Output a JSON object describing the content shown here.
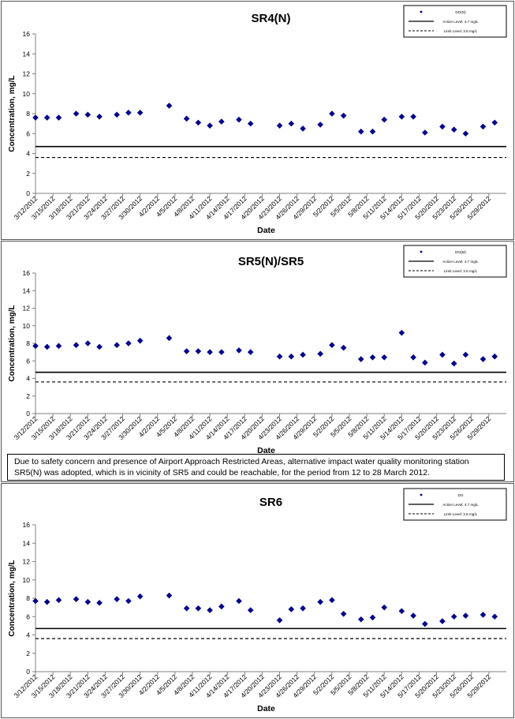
{
  "chart_data": [
    {
      "type": "scatter",
      "title": "SR4(N)",
      "xlabel": "Date",
      "ylabel": "Concentration, mg/L",
      "ylim": [
        0,
        16
      ],
      "y_ticks": [
        "0",
        "2",
        "4",
        "6",
        "8",
        "10",
        "12",
        "14",
        "16"
      ],
      "x_ticks": [
        "3/12/2012",
        "3/15/2012",
        "3/18/2012",
        "3/21/2012",
        "3/24/2012",
        "3/27/2012",
        "3/30/2012",
        "4/2/2012",
        "4/5/2012",
        "4/8/2012",
        "4/11/2012",
        "4/14/2012",
        "4/17/2012",
        "4/20/2012",
        "4/23/2012",
        "4/26/2012",
        "4/29/2012",
        "5/2/2012",
        "5/5/2012",
        "5/8/2012",
        "5/11/2012",
        "5/14/2012",
        "5/17/2012",
        "5/20/2012",
        "5/23/2012",
        "5/26/2012",
        "5/29/2012"
      ],
      "x_range": [
        "2012-03-12",
        "2012-06-01"
      ],
      "grid": false,
      "legend_position": "top-right",
      "series": [
        {
          "name": "DO(N)",
          "kind": "marker",
          "color": "#00008B",
          "x": [
            "2012-03-12",
            "2012-03-14",
            "2012-03-16",
            "2012-03-19",
            "2012-03-21",
            "2012-03-23",
            "2012-03-26",
            "2012-03-28",
            "2012-03-30",
            "2012-04-04",
            "2012-04-07",
            "2012-04-09",
            "2012-04-11",
            "2012-04-13",
            "2012-04-16",
            "2012-04-18",
            "2012-04-23",
            "2012-04-25",
            "2012-04-27",
            "2012-04-30",
            "2012-05-02",
            "2012-05-04",
            "2012-05-07",
            "2012-05-09",
            "2012-05-11",
            "2012-05-14",
            "2012-05-16",
            "2012-05-18",
            "2012-05-21",
            "2012-05-23",
            "2012-05-25",
            "2012-05-28",
            "2012-05-30"
          ],
          "y": [
            7.6,
            7.6,
            7.6,
            8.0,
            7.9,
            7.7,
            7.9,
            8.1,
            8.1,
            8.8,
            7.5,
            7.1,
            6.8,
            7.2,
            7.4,
            7.0,
            6.8,
            7.0,
            6.5,
            6.9,
            8.0,
            7.8,
            6.2,
            6.2,
            7.4,
            7.7,
            7.7,
            6.1,
            6.7,
            6.4,
            6.0,
            6.7,
            7.1
          ]
        },
        {
          "name": "Action Level: 4.7 mg/L",
          "kind": "line",
          "style": "solid",
          "value": 4.7
        },
        {
          "name": "Limit Level: 3.6 mg/L",
          "kind": "line",
          "style": "dashed",
          "value": 3.6
        }
      ]
    },
    {
      "type": "scatter",
      "title": "SR5(N)/SR5",
      "xlabel": "Date",
      "ylabel": "Concentration, mg/L",
      "ylim": [
        0,
        16
      ],
      "y_ticks": [
        "0",
        "2",
        "4",
        "6",
        "8",
        "10",
        "12",
        "14",
        "16"
      ],
      "x_ticks": [
        "3/12/2012",
        "3/15/2012",
        "3/18/2012",
        "3/21/2012",
        "3/24/2012",
        "3/27/2012",
        "3/30/2012",
        "4/2/2012",
        "4/5/2012",
        "4/8/2012",
        "4/11/2012",
        "4/14/2012",
        "4/17/2012",
        "4/20/2012",
        "4/23/2012",
        "4/26/2012",
        "4/29/2012",
        "5/2/2012",
        "5/5/2012",
        "5/8/2012",
        "5/11/2012",
        "5/14/2012",
        "5/17/2012",
        "5/20/2012",
        "5/23/2012",
        "5/26/2012",
        "5/29/2012"
      ],
      "x_range": [
        "2012-03-12",
        "2012-06-01"
      ],
      "grid": false,
      "legend_position": "top-right",
      "note": "Due to safety concern and presence of Airport Approach Restricted Areas, alternative impact water quality monitoring station SR5(N) was adopted, which is in vicinity of SR5 and could be reachable, for the period from 12 to 28 March 2012.",
      "series": [
        {
          "name": "DO(M)",
          "kind": "marker",
          "color": "#00008B",
          "x": [
            "2012-03-12",
            "2012-03-14",
            "2012-03-16",
            "2012-03-19",
            "2012-03-21",
            "2012-03-23",
            "2012-03-26",
            "2012-03-28",
            "2012-03-30",
            "2012-04-04",
            "2012-04-07",
            "2012-04-09",
            "2012-04-11",
            "2012-04-13",
            "2012-04-16",
            "2012-04-18",
            "2012-04-23",
            "2012-04-25",
            "2012-04-27",
            "2012-04-30",
            "2012-05-02",
            "2012-05-04",
            "2012-05-07",
            "2012-05-09",
            "2012-05-11",
            "2012-05-14",
            "2012-05-16",
            "2012-05-18",
            "2012-05-21",
            "2012-05-23",
            "2012-05-25",
            "2012-05-28",
            "2012-05-30"
          ],
          "y": [
            7.7,
            7.6,
            7.7,
            7.8,
            8.0,
            7.6,
            7.8,
            8.0,
            8.3,
            8.6,
            7.1,
            7.1,
            7.0,
            7.0,
            7.2,
            7.0,
            6.5,
            6.5,
            6.7,
            6.8,
            7.8,
            7.5,
            6.2,
            6.4,
            6.4,
            9.2,
            6.4,
            5.8,
            6.7,
            5.7,
            6.7,
            6.2,
            6.5
          ]
        },
        {
          "name": "Action Level: 4.7 mg/L",
          "kind": "line",
          "style": "solid",
          "value": 4.7
        },
        {
          "name": "Limit Level: 3.6 mg/L",
          "kind": "line",
          "style": "dashed",
          "value": 3.6
        }
      ]
    },
    {
      "type": "scatter",
      "title": "SR6",
      "xlabel": "Date",
      "ylabel": "Concentration, mg/L",
      "ylim": [
        0,
        16
      ],
      "y_ticks": [
        "0",
        "2",
        "4",
        "6",
        "8",
        "10",
        "12",
        "14",
        "16"
      ],
      "x_ticks": [
        "3/12/2012",
        "3/15/2012",
        "3/18/2012",
        "3/21/2012",
        "3/24/2012",
        "3/27/2012",
        "3/30/2012",
        "4/2/2012",
        "4/5/2012",
        "4/8/2012",
        "4/11/2012",
        "4/14/2012",
        "4/17/2012",
        "4/20/2012",
        "4/23/2012",
        "4/26/2012",
        "4/29/2012",
        "5/2/2012",
        "5/5/2012",
        "5/8/2012",
        "5/11/2012",
        "5/14/2012",
        "5/17/2012",
        "5/20/2012",
        "5/23/2012",
        "5/26/2012",
        "5/29/2012"
      ],
      "x_range": [
        "2012-03-12",
        "2012-06-01"
      ],
      "grid": false,
      "legend_position": "top-right",
      "series": [
        {
          "name": "DO",
          "kind": "marker",
          "color": "#00008B",
          "x": [
            "2012-03-12",
            "2012-03-14",
            "2012-03-16",
            "2012-03-19",
            "2012-03-21",
            "2012-03-23",
            "2012-03-26",
            "2012-03-28",
            "2012-03-30",
            "2012-04-04",
            "2012-04-07",
            "2012-04-09",
            "2012-04-11",
            "2012-04-13",
            "2012-04-16",
            "2012-04-18",
            "2012-04-23",
            "2012-04-25",
            "2012-04-27",
            "2012-04-30",
            "2012-05-02",
            "2012-05-04",
            "2012-05-07",
            "2012-05-09",
            "2012-05-11",
            "2012-05-14",
            "2012-05-16",
            "2012-05-18",
            "2012-05-21",
            "2012-05-23",
            "2012-05-25",
            "2012-05-28",
            "2012-05-30"
          ],
          "y": [
            7.7,
            7.6,
            7.8,
            7.9,
            7.6,
            7.5,
            7.9,
            7.7,
            8.2,
            8.3,
            6.9,
            6.9,
            6.7,
            7.1,
            7.7,
            6.7,
            5.6,
            6.8,
            6.9,
            7.6,
            7.8,
            6.3,
            5.7,
            5.9,
            7.0,
            6.6,
            6.1,
            5.2,
            5.5,
            6.0,
            6.1,
            6.2,
            6.0
          ]
        },
        {
          "name": "Action Level: 4.7 mg/L",
          "kind": "line",
          "style": "solid",
          "value": 4.7
        },
        {
          "name": "Limit Level: 3.6 mg/L",
          "kind": "line",
          "style": "dashed",
          "value": 3.6
        }
      ]
    }
  ]
}
